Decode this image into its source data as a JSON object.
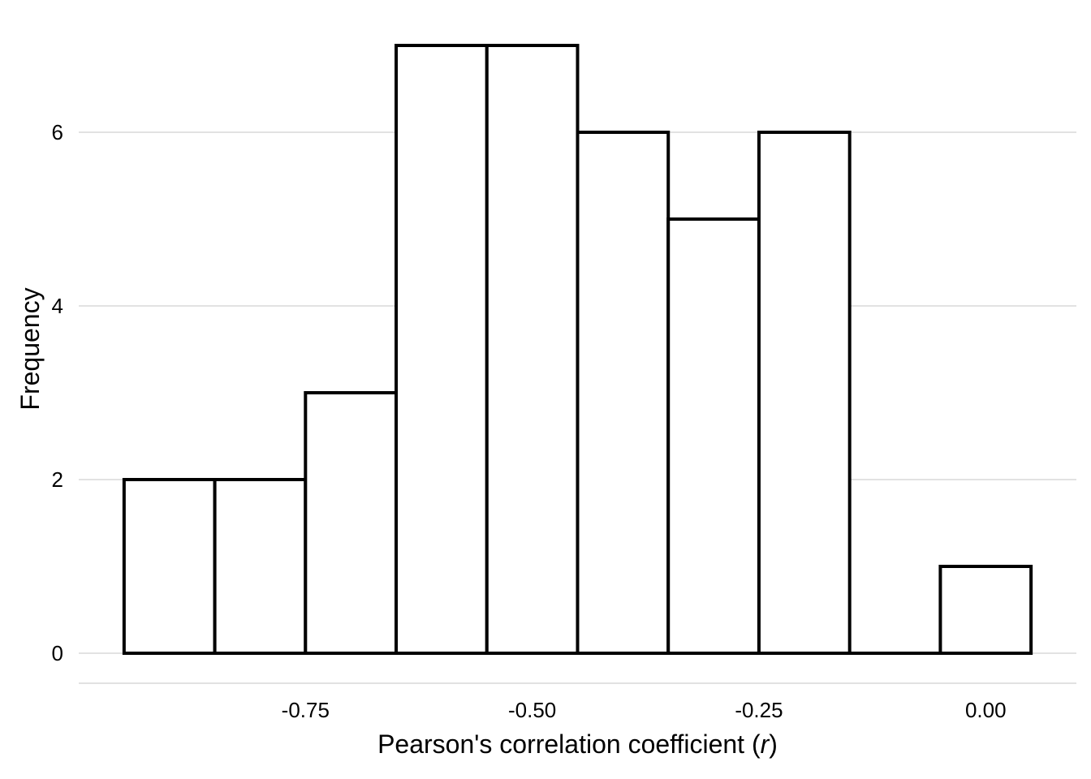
{
  "chart_data": {
    "type": "bar",
    "subtype": "histogram",
    "xlabel": "Pearson's correlation coefficient (",
    "xlabel_var": "r",
    "xlabel_close": ")",
    "ylabel": "Frequency",
    "bin_width": 0.1,
    "bins": [
      {
        "start": -0.95,
        "end": -0.85,
        "count": 2
      },
      {
        "start": -0.85,
        "end": -0.75,
        "count": 2
      },
      {
        "start": -0.75,
        "end": -0.65,
        "count": 3
      },
      {
        "start": -0.65,
        "end": -0.55,
        "count": 7
      },
      {
        "start": -0.55,
        "end": -0.45,
        "count": 7
      },
      {
        "start": -0.45,
        "end": -0.35,
        "count": 6
      },
      {
        "start": -0.35,
        "end": -0.25,
        "count": 5
      },
      {
        "start": -0.25,
        "end": -0.15,
        "count": 6
      },
      {
        "start": -0.15,
        "end": -0.05,
        "count": 0
      },
      {
        "start": -0.05,
        "end": 0.05,
        "count": 1
      }
    ],
    "x_ticks": [
      {
        "value": -0.75,
        "label": "-0.75"
      },
      {
        "value": -0.5,
        "label": "-0.50"
      },
      {
        "value": -0.25,
        "label": "-0.25"
      },
      {
        "value": 0.0,
        "label": "0.00"
      }
    ],
    "y_ticks": [
      {
        "value": 0,
        "label": "0"
      },
      {
        "value": 2,
        "label": "2"
      },
      {
        "value": 4,
        "label": "4"
      },
      {
        "value": 6,
        "label": "6"
      }
    ],
    "xlim": [
      -1.0,
      0.1
    ],
    "ylim": [
      0,
      7.3
    ],
    "grid": true,
    "bar_fill": "#ffffff",
    "bar_stroke": "#000000",
    "grid_color": "#d9d9d9"
  }
}
